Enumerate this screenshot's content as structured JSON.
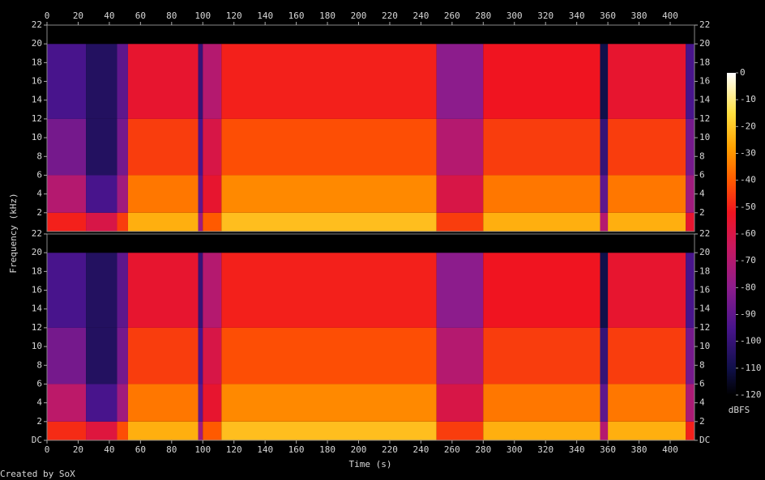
{
  "chart_data": {
    "type": "heatmap",
    "xlabel": "Time (s)",
    "ylabel": "Frequency (kHz)",
    "footer": "Created by SoX",
    "xlim": [
      0,
      415.6
    ],
    "xticks": [
      0,
      20,
      40,
      60,
      80,
      100,
      120,
      140,
      160,
      180,
      200,
      220,
      240,
      260,
      280,
      300,
      320,
      340,
      360,
      380,
      400
    ],
    "time_bins": [
      0,
      25,
      45,
      52,
      97,
      100,
      112,
      250,
      280,
      355,
      360,
      410,
      415.6
    ],
    "freq_bins": [
      0,
      2,
      6,
      12,
      20,
      22
    ],
    "colorbar": {
      "label": "dBFS",
      "zlim": [
        -120,
        0
      ],
      "zticks": [
        0,
        -10,
        -20,
        -30,
        -40,
        -50,
        -60,
        -70,
        -80,
        -90,
        -100,
        -110,
        -120
      ],
      "colormap": [
        {
          "value": -120,
          "color": "#000000"
        },
        {
          "value": -110,
          "color": "#10104a"
        },
        {
          "value": -95,
          "color": "#48148c"
        },
        {
          "value": -80,
          "color": "#8c1c8c"
        },
        {
          "value": -65,
          "color": "#c81860"
        },
        {
          "value": -52,
          "color": "#f01420"
        },
        {
          "value": -40,
          "color": "#ff5a00"
        },
        {
          "value": -28,
          "color": "#ffa000"
        },
        {
          "value": -15,
          "color": "#ffe040"
        },
        {
          "value": 0,
          "color": "#ffffff"
        }
      ]
    },
    "channels": [
      {
        "ylim": [
          0,
          22
        ],
        "yticks": [
          2,
          4,
          6,
          8,
          10,
          12,
          14,
          16,
          18,
          20,
          22
        ],
        "values": [
          [
            -50,
            -70,
            -85,
            -95,
            -120
          ],
          [
            -60,
            -95,
            -105,
            -105,
            -120
          ],
          [
            -45,
            -75,
            -85,
            -90,
            -120
          ],
          [
            -25,
            -35,
            -45,
            -55,
            -120
          ],
          [
            -75,
            -90,
            -95,
            -100,
            -120
          ],
          [
            -40,
            -55,
            -60,
            -70,
            -120
          ],
          [
            -22,
            -32,
            -42,
            -50,
            -120
          ],
          [
            -45,
            -60,
            -70,
            -80,
            -120
          ],
          [
            -25,
            -35,
            -45,
            -52,
            -120
          ],
          [
            -70,
            -90,
            -100,
            -110,
            -120
          ],
          [
            -25,
            -35,
            -45,
            -55,
            -120
          ],
          [
            -55,
            -75,
            -85,
            -95,
            -120
          ]
        ]
      },
      {
        "ylim": [
          0,
          22
        ],
        "yticks": [
          {
            "value": 0,
            "label": "DC"
          },
          2,
          4,
          6,
          8,
          10,
          12,
          14,
          16,
          18,
          20,
          22
        ],
        "values": [
          [
            -48,
            -68,
            -85,
            -95,
            -120
          ],
          [
            -58,
            -95,
            -105,
            -105,
            -120
          ],
          [
            -42,
            -75,
            -85,
            -90,
            -120
          ],
          [
            -25,
            -35,
            -45,
            -55,
            -120
          ],
          [
            -75,
            -90,
            -95,
            -100,
            -120
          ],
          [
            -40,
            -55,
            -60,
            -70,
            -120
          ],
          [
            -22,
            -32,
            -42,
            -50,
            -120
          ],
          [
            -45,
            -60,
            -70,
            -80,
            -120
          ],
          [
            -25,
            -35,
            -45,
            -52,
            -120
          ],
          [
            -70,
            -90,
            -100,
            -110,
            -120
          ],
          [
            -25,
            -35,
            -45,
            -55,
            -120
          ],
          [
            -50,
            -72,
            -85,
            -95,
            -120
          ]
        ]
      }
    ]
  }
}
